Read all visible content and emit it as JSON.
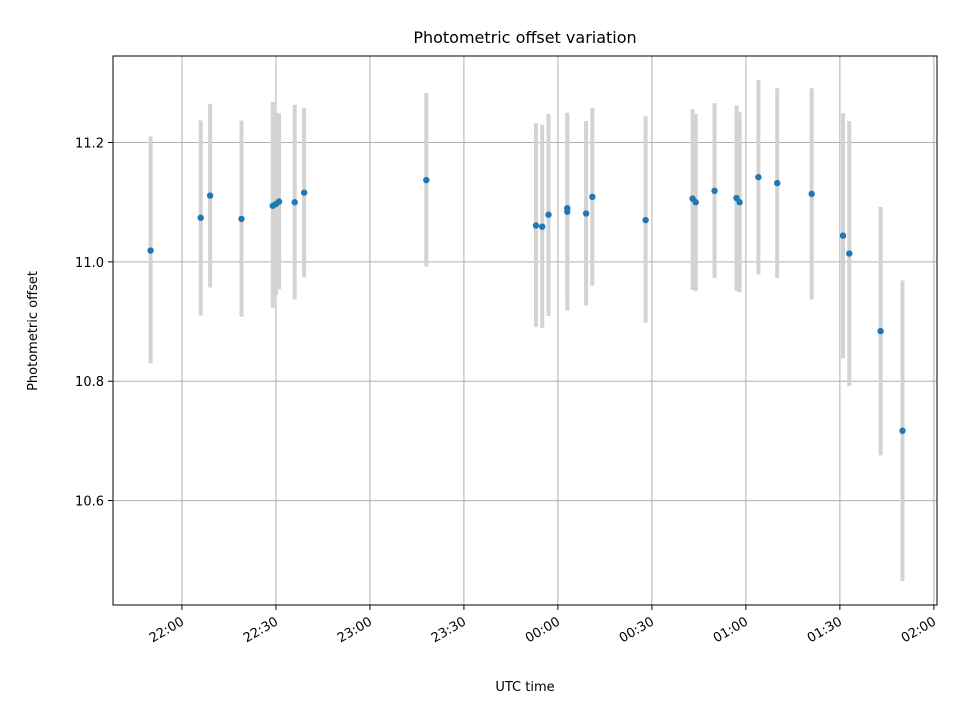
{
  "chart_data": {
    "type": "scatter",
    "title": "Photometric offset variation",
    "xlabel": "UTC time",
    "ylabel": "Photometric offset",
    "xlim": [
      "21:38",
      "02:01"
    ],
    "ylim": [
      10.425,
      11.345
    ],
    "grid": true,
    "x_ticks": [
      "22:00",
      "22:30",
      "23:00",
      "23:30",
      "00:00",
      "00:30",
      "01:00",
      "01:30",
      "02:00"
    ],
    "y_ticks": [
      10.6,
      10.8,
      11.0,
      11.2
    ],
    "y_tick_labels": [
      "10.6",
      "10.8",
      "11.0",
      "11.2"
    ],
    "colors": {
      "points": "#1f77b4",
      "error_bars": "#d3d3d3",
      "grid": "#b0b0b0"
    },
    "series": [
      {
        "points": [
          {
            "x": "21:50",
            "y": 11.019,
            "low": 10.83,
            "high": 11.21
          },
          {
            "x": "22:06",
            "y": 11.074,
            "low": 10.91,
            "high": 11.237
          },
          {
            "x": "22:09",
            "y": 11.111,
            "low": 10.957,
            "high": 11.265
          },
          {
            "x": "22:19",
            "y": 11.072,
            "low": 10.908,
            "high": 11.237
          },
          {
            "x": "22:29",
            "y": 11.094,
            "low": 10.923,
            "high": 11.268
          },
          {
            "x": "22:30",
            "y": 11.097,
            "low": 10.945,
            "high": 11.25
          },
          {
            "x": "22:31",
            "y": 11.101,
            "low": 10.954,
            "high": 11.249
          },
          {
            "x": "22:36",
            "y": 11.1,
            "low": 10.937,
            "high": 11.263
          },
          {
            "x": "22:39",
            "y": 11.116,
            "low": 10.974,
            "high": 11.258
          },
          {
            "x": "23:18",
            "y": 11.137,
            "low": 10.992,
            "high": 11.283
          },
          {
            "x": "23:53",
            "y": 11.061,
            "low": 10.891,
            "high": 11.232
          },
          {
            "x": "23:55",
            "y": 11.059,
            "low": 10.889,
            "high": 11.23
          },
          {
            "x": "23:57",
            "y": 11.079,
            "low": 10.909,
            "high": 11.248
          },
          {
            "x": "00:03",
            "y": 11.084,
            "low": 10.918,
            "high": 11.25
          },
          {
            "x": "00:03",
            "y": 11.09,
            "low": 10.938,
            "high": 11.242
          },
          {
            "x": "00:09",
            "y": 11.081,
            "low": 10.927,
            "high": 11.236
          },
          {
            "x": "00:11",
            "y": 11.109,
            "low": 10.96,
            "high": 11.258
          },
          {
            "x": "00:28",
            "y": 11.07,
            "low": 10.898,
            "high": 11.244
          },
          {
            "x": "00:43",
            "y": 11.106,
            "low": 10.953,
            "high": 11.256
          },
          {
            "x": "00:44",
            "y": 11.1,
            "low": 10.951,
            "high": 11.248
          },
          {
            "x": "00:50",
            "y": 11.119,
            "low": 10.973,
            "high": 11.266
          },
          {
            "x": "00:57",
            "y": 11.107,
            "low": 10.951,
            "high": 11.262
          },
          {
            "x": "00:58",
            "y": 11.1,
            "low": 10.949,
            "high": 11.251
          },
          {
            "x": "01:04",
            "y": 11.142,
            "low": 10.979,
            "high": 11.305
          },
          {
            "x": "01:10",
            "y": 11.132,
            "low": 10.973,
            "high": 11.291
          },
          {
            "x": "01:21",
            "y": 11.114,
            "low": 10.937,
            "high": 11.291
          },
          {
            "x": "01:31",
            "y": 11.044,
            "low": 10.838,
            "high": 11.249
          },
          {
            "x": "01:33",
            "y": 11.014,
            "low": 10.792,
            "high": 11.236
          },
          {
            "x": "01:43",
            "y": 10.884,
            "low": 10.676,
            "high": 11.092
          },
          {
            "x": "01:50",
            "y": 10.717,
            "low": 10.465,
            "high": 10.969
          }
        ]
      }
    ]
  }
}
